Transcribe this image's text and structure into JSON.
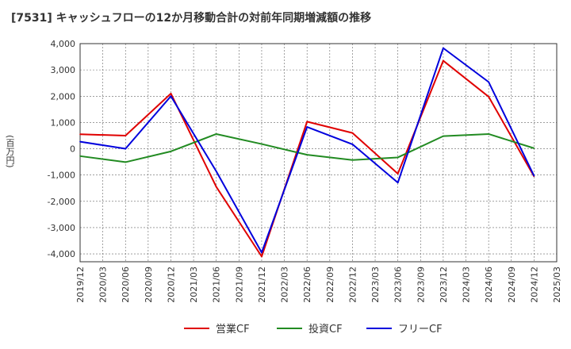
{
  "chart_data": {
    "type": "line",
    "title": "[7531]  キャッシュフローの12か月移動合計の対前年同期増減額の推移",
    "ylabel": "(百万円)",
    "xlabel": "",
    "ylim": [
      -4300,
      4000
    ],
    "yticks": [
      4000,
      3000,
      2000,
      1000,
      0,
      -1000,
      -2000,
      -3000,
      -4000
    ],
    "ytick_labels": [
      "4,000",
      "3,000",
      "2,000",
      "1,000",
      "0",
      "-1,000",
      "-2,000",
      "-3,000",
      "-4,000"
    ],
    "xticks": [
      "2019/12",
      "2020/03",
      "2020/06",
      "2020/09",
      "2020/12",
      "2021/03",
      "2021/06",
      "2021/09",
      "2021/12",
      "2022/03",
      "2022/06",
      "2022/09",
      "2022/12",
      "2023/03",
      "2023/06",
      "2023/09",
      "2023/12",
      "2024/03",
      "2024/06",
      "2024/09",
      "2024/12",
      "2025/03"
    ],
    "grid": true,
    "legend_position": "bottom",
    "series": [
      {
        "name": "営業CF",
        "color": "#e00000",
        "x": [
          "2019/12",
          "2020/06",
          "2020/12",
          "2021/06",
          "2021/12",
          "2022/06",
          "2022/12",
          "2023/06",
          "2023/12",
          "2024/06",
          "2024/12"
        ],
        "values": [
          550,
          500,
          2100,
          -1450,
          -4100,
          1030,
          600,
          -950,
          3350,
          1980,
          -1050
        ]
      },
      {
        "name": "投資CF",
        "color": "#228b22",
        "x": [
          "2019/12",
          "2020/06",
          "2020/12",
          "2021/06",
          "2021/12",
          "2022/06",
          "2022/12",
          "2023/06",
          "2023/12",
          "2024/06",
          "2024/12"
        ],
        "values": [
          -280,
          -510,
          -100,
          560,
          180,
          -230,
          -430,
          -330,
          480,
          560,
          20
        ]
      },
      {
        "name": "フリーCF",
        "color": "#0000dd",
        "x": [
          "2019/12",
          "2020/06",
          "2020/12",
          "2021/06",
          "2021/12",
          "2022/06",
          "2022/12",
          "2023/06",
          "2023/12",
          "2024/06",
          "2024/12"
        ],
        "values": [
          270,
          0,
          2000,
          -860,
          -3950,
          830,
          170,
          -1290,
          3830,
          2540,
          -1030
        ]
      }
    ]
  }
}
